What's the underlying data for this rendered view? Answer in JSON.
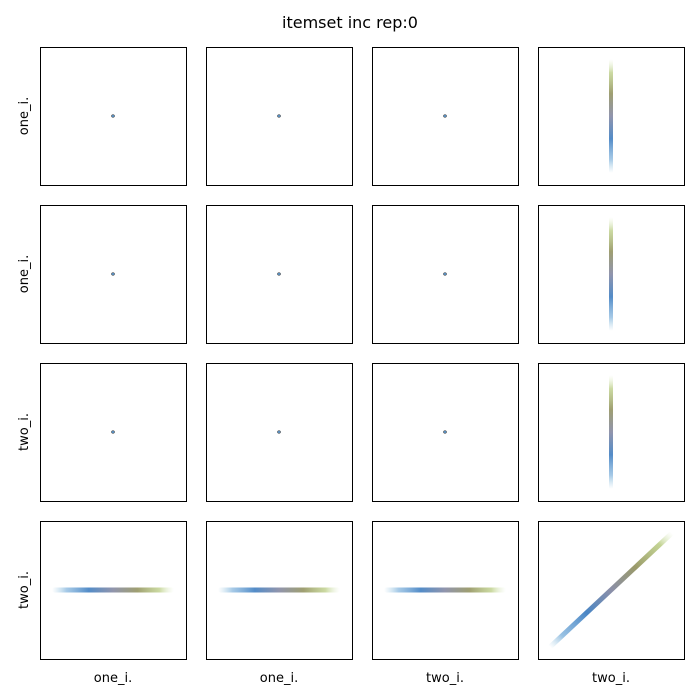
{
  "chart_data": {
    "type": "scatter",
    "title": "itemset inc rep:0",
    "layout": "pairplot",
    "variables": [
      "one_i.",
      "one_i.",
      "two_i.",
      "two_i."
    ],
    "row_labels": [
      "one_i.",
      "one_i.",
      "two_i.",
      "two_i."
    ],
    "col_labels": [
      "one_i.",
      "one_i.",
      "two_i.",
      "two_i."
    ],
    "ticks_visible": false,
    "grid": false,
    "legend": "none",
    "color_gradient": [
      "#9ecae1",
      "#4a86c5",
      "#8b8fa8",
      "#9a9a6a",
      "#b5c97a",
      "#d9ecc0"
    ],
    "cells": [
      {
        "row": 0,
        "col": 0,
        "kind": "point"
      },
      {
        "row": 0,
        "col": 1,
        "kind": "point"
      },
      {
        "row": 0,
        "col": 2,
        "kind": "point"
      },
      {
        "row": 0,
        "col": 3,
        "kind": "vertical"
      },
      {
        "row": 1,
        "col": 0,
        "kind": "point"
      },
      {
        "row": 1,
        "col": 1,
        "kind": "point"
      },
      {
        "row": 1,
        "col": 2,
        "kind": "point"
      },
      {
        "row": 1,
        "col": 3,
        "kind": "vertical"
      },
      {
        "row": 2,
        "col": 0,
        "kind": "point"
      },
      {
        "row": 2,
        "col": 1,
        "kind": "point"
      },
      {
        "row": 2,
        "col": 2,
        "kind": "point"
      },
      {
        "row": 2,
        "col": 3,
        "kind": "vertical"
      },
      {
        "row": 3,
        "col": 0,
        "kind": "horizontal"
      },
      {
        "row": 3,
        "col": 1,
        "kind": "horizontal"
      },
      {
        "row": 3,
        "col": 2,
        "kind": "horizontal"
      },
      {
        "row": 3,
        "col": 3,
        "kind": "diagonal"
      }
    ]
  }
}
